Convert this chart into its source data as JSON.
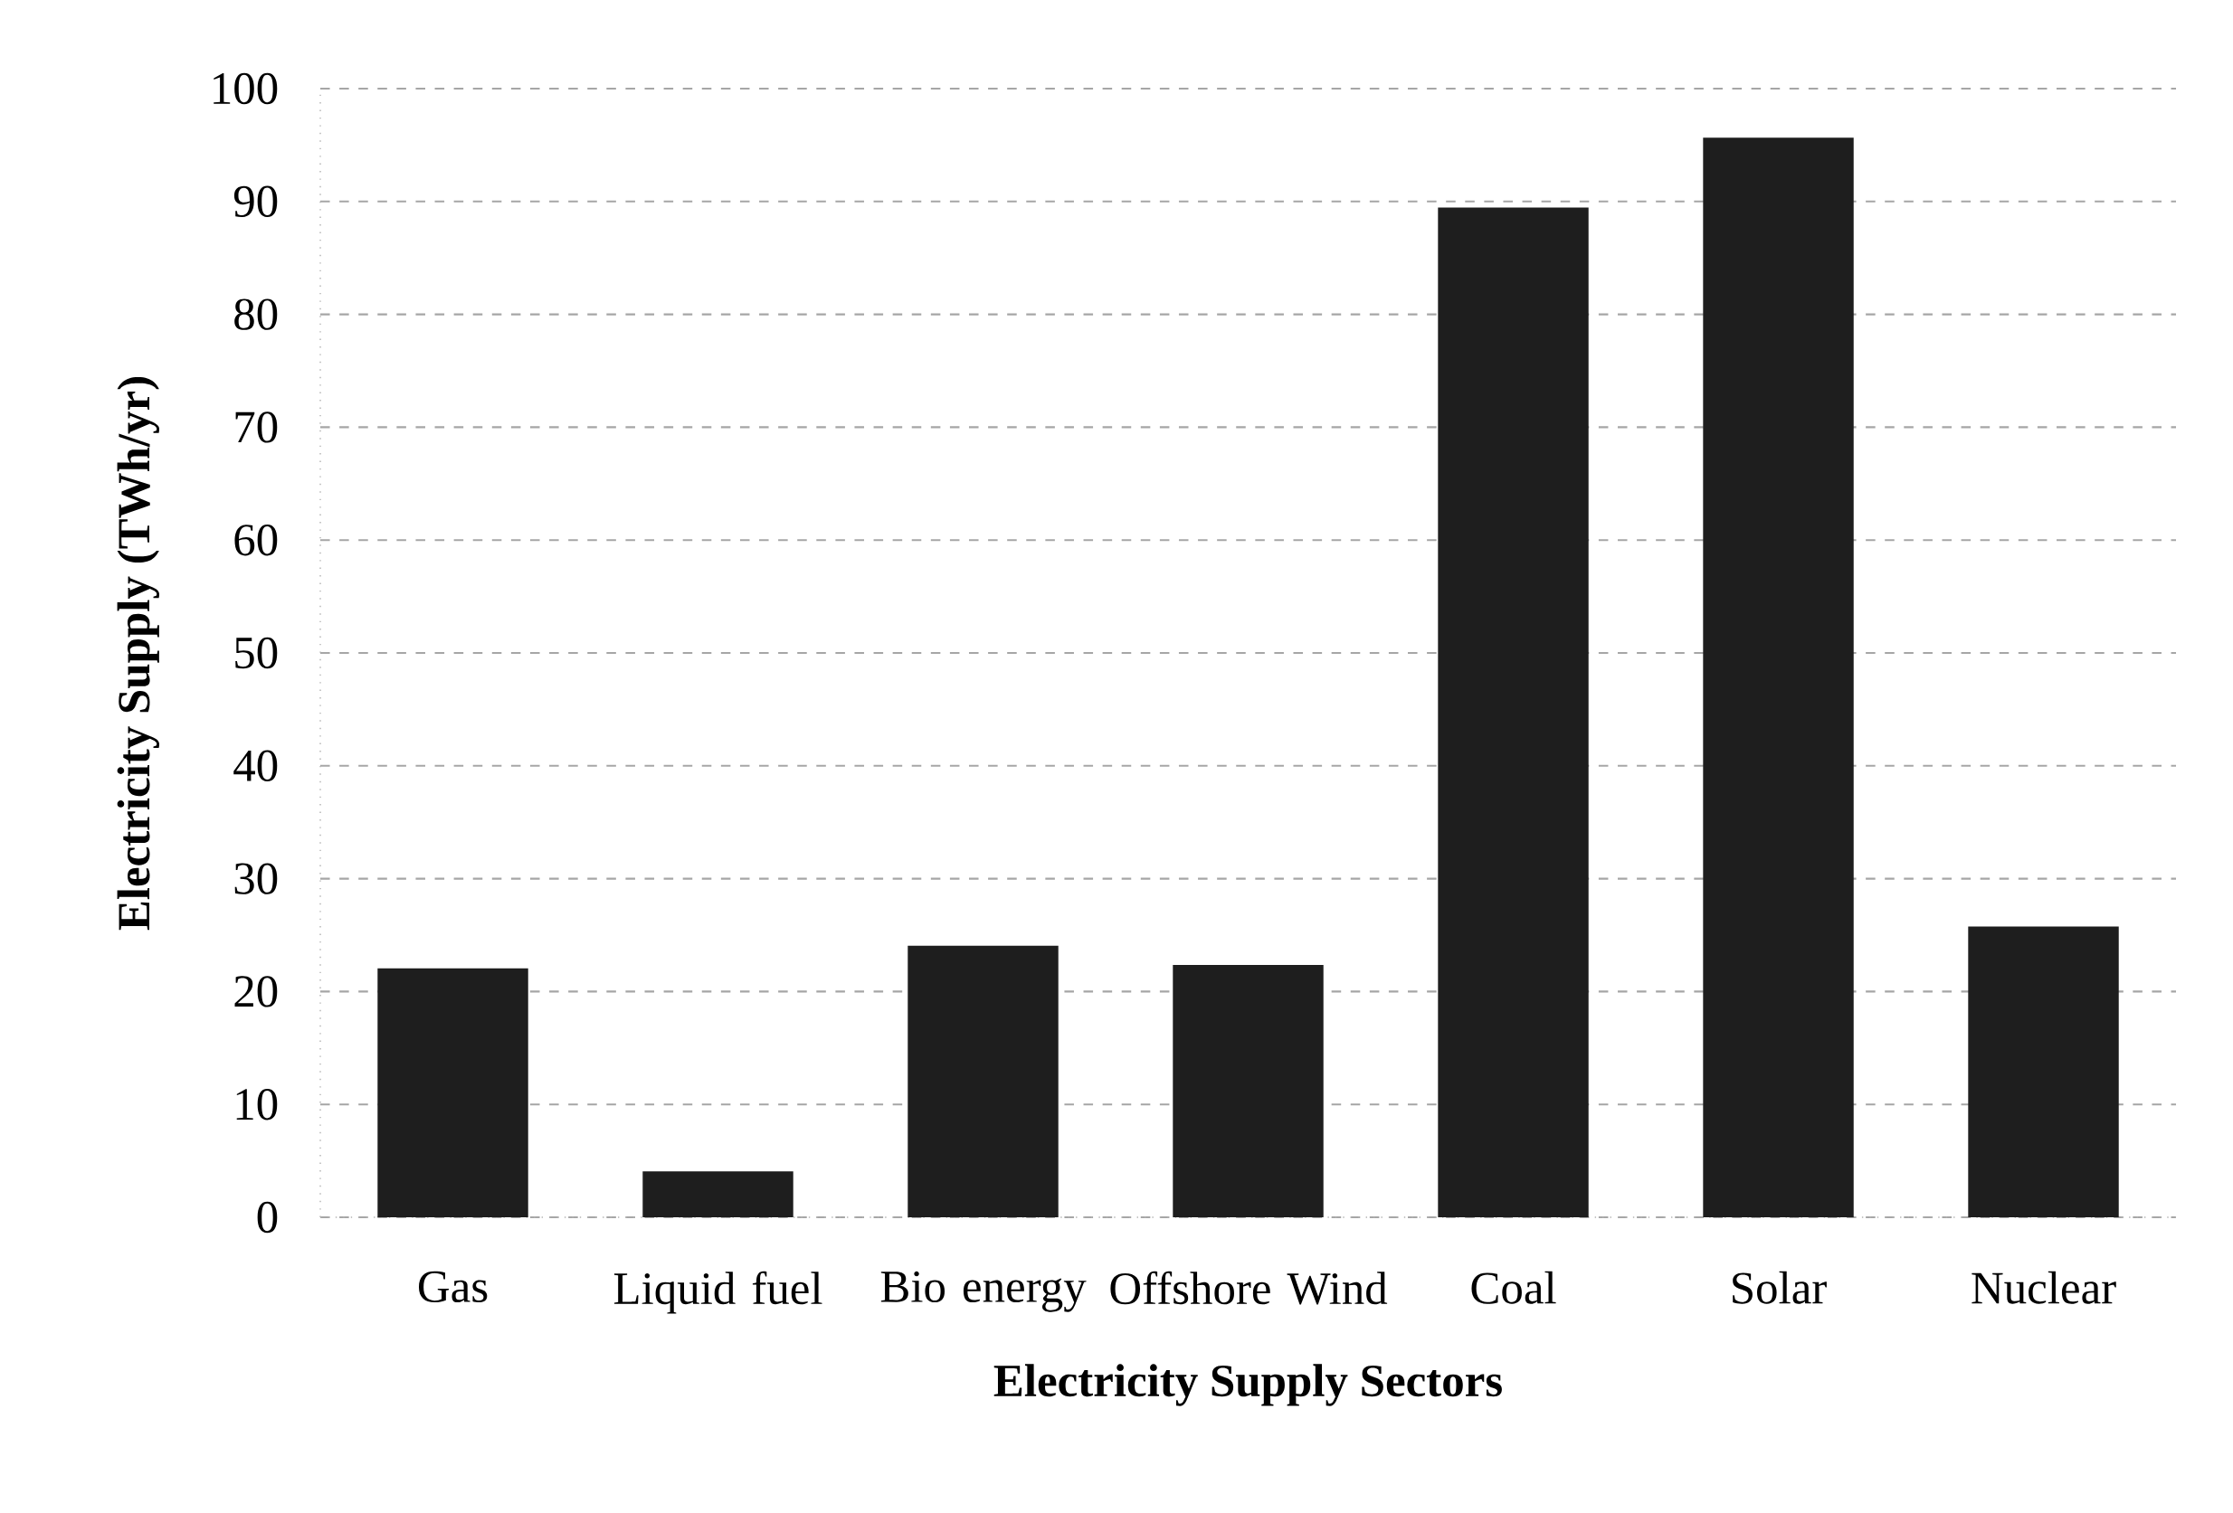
{
  "chart_data": {
    "type": "bar",
    "xlabel": "Electricity Supply Sectors",
    "ylabel": "Electricity Supply (TWh/yr)",
    "categories": [
      "Gas",
      "Liquid fuel",
      "Bio energy",
      "Offshore Wind",
      "Coal",
      "Solar",
      "Nuclear"
    ],
    "values": [
      22,
      4,
      24,
      22.3,
      89.4,
      95.6,
      25.7
    ],
    "color": "#1e1e1e",
    "ylim": [
      0,
      100
    ],
    "yticks": [
      0,
      10,
      20,
      30,
      40,
      50,
      60,
      70,
      80,
      90,
      100
    ],
    "grid": "y"
  }
}
